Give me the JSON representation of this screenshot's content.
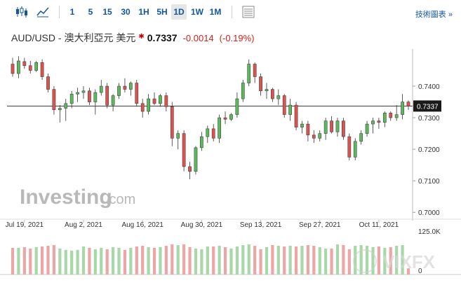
{
  "toolbar": {
    "intervals": [
      "1",
      "5",
      "15",
      "30",
      "1H",
      "5H",
      "1D",
      "1W",
      "1M"
    ],
    "active_interval": "1D",
    "tech_chart_label": "技術圖表 »"
  },
  "header": {
    "symbol": "AUD/USD - 澳大利亞元 美元",
    "price": "0.7337",
    "change": "-0.0014",
    "change_pct": "(-0.19%)"
  },
  "branding": {
    "logo_main": "Investing",
    "logo_suffix": ".com",
    "watermark": "VIXFX"
  },
  "colors": {
    "up": "#5cb85c",
    "down": "#d9534f",
    "vol_up": "#a8d8a8",
    "vol_down": "#eda6a6",
    "accent": "#1256a0"
  },
  "chart_data": {
    "type": "candlestick",
    "y_ticks": [
      "0.7400",
      "0.7300",
      "0.7200",
      "0.7100",
      "0.7000"
    ],
    "ylim": [
      0.6985,
      0.75
    ],
    "x_labels": [
      "Jul 19, 2021",
      "Aug 2, 2021",
      "Aug 16, 2021",
      "Aug 30, 2021",
      "Sep 13, 2021",
      "Sep 27, 2021",
      "Oct 11, 2021"
    ],
    "current_price_label": "0.7337",
    "current_price": 0.7337,
    "volume_label": "125.0K",
    "volume_zero_label": "0",
    "ohlc": [
      [
        0.747,
        0.749,
        0.743,
        0.744
      ],
      [
        0.744,
        0.7495,
        0.7425,
        0.748
      ],
      [
        0.7478,
        0.749,
        0.7455,
        0.7465
      ],
      [
        0.7465,
        0.748,
        0.744,
        0.745
      ],
      [
        0.745,
        0.748,
        0.7445,
        0.7475
      ],
      [
        0.7475,
        0.7485,
        0.742,
        0.743
      ],
      [
        0.743,
        0.744,
        0.738,
        0.739
      ],
      [
        0.739,
        0.74,
        0.731,
        0.7325
      ],
      [
        0.7325,
        0.734,
        0.7285,
        0.733
      ],
      [
        0.733,
        0.736,
        0.729,
        0.7345
      ],
      [
        0.7345,
        0.7385,
        0.733,
        0.7375
      ],
      [
        0.7375,
        0.7395,
        0.735,
        0.738
      ],
      [
        0.738,
        0.74,
        0.736,
        0.7385
      ],
      [
        0.7385,
        0.7395,
        0.734,
        0.735
      ],
      [
        0.735,
        0.739,
        0.731,
        0.738
      ],
      [
        0.738,
        0.742,
        0.737,
        0.74
      ],
      [
        0.74,
        0.741,
        0.733,
        0.734
      ],
      [
        0.734,
        0.7375,
        0.732,
        0.737
      ],
      [
        0.737,
        0.741,
        0.736,
        0.74
      ],
      [
        0.74,
        0.7425,
        0.738,
        0.739
      ],
      [
        0.739,
        0.7415,
        0.737,
        0.741
      ],
      [
        0.741,
        0.742,
        0.7335,
        0.7345
      ],
      [
        0.7345,
        0.736,
        0.73,
        0.732
      ],
      [
        0.732,
        0.7375,
        0.731,
        0.736
      ],
      [
        0.736,
        0.738,
        0.734,
        0.7345
      ],
      [
        0.7345,
        0.7375,
        0.7335,
        0.737
      ],
      [
        0.737,
        0.738,
        0.732,
        0.7335
      ],
      [
        0.7335,
        0.735,
        0.721,
        0.7235
      ],
      [
        0.7235,
        0.726,
        0.72,
        0.725
      ],
      [
        0.725,
        0.726,
        0.713,
        0.7145
      ],
      [
        0.7145,
        0.716,
        0.7105,
        0.713
      ],
      [
        0.713,
        0.721,
        0.712,
        0.7205
      ],
      [
        0.7205,
        0.7255,
        0.7195,
        0.724
      ],
      [
        0.724,
        0.7275,
        0.722,
        0.7265
      ],
      [
        0.7265,
        0.728,
        0.7225,
        0.7235
      ],
      [
        0.7235,
        0.731,
        0.722,
        0.73
      ],
      [
        0.73,
        0.732,
        0.728,
        0.7295
      ],
      [
        0.7295,
        0.7315,
        0.729,
        0.731
      ],
      [
        0.731,
        0.738,
        0.73,
        0.736
      ],
      [
        0.736,
        0.742,
        0.735,
        0.741
      ],
      [
        0.741,
        0.7485,
        0.74,
        0.747
      ],
      [
        0.747,
        0.7475,
        0.741,
        0.743
      ],
      [
        0.743,
        0.744,
        0.737,
        0.7385
      ],
      [
        0.7385,
        0.741,
        0.736,
        0.739
      ],
      [
        0.739,
        0.7395,
        0.735,
        0.736
      ],
      [
        0.736,
        0.739,
        0.734,
        0.737
      ],
      [
        0.737,
        0.7375,
        0.73,
        0.731
      ],
      [
        0.731,
        0.736,
        0.729,
        0.734
      ],
      [
        0.734,
        0.735,
        0.726,
        0.727
      ],
      [
        0.727,
        0.729,
        0.725,
        0.728
      ],
      [
        0.728,
        0.729,
        0.7225,
        0.7245
      ],
      [
        0.7245,
        0.726,
        0.722,
        0.7235
      ],
      [
        0.7235,
        0.726,
        0.7225,
        0.725
      ],
      [
        0.725,
        0.73,
        0.723,
        0.729
      ],
      [
        0.729,
        0.7305,
        0.725,
        0.7255
      ],
      [
        0.7255,
        0.73,
        0.724,
        0.729
      ],
      [
        0.729,
        0.73,
        0.723,
        0.724
      ],
      [
        0.724,
        0.725,
        0.7165,
        0.7175
      ],
      [
        0.7175,
        0.7235,
        0.7165,
        0.7225
      ],
      [
        0.7225,
        0.726,
        0.7215,
        0.725
      ],
      [
        0.725,
        0.729,
        0.724,
        0.728
      ],
      [
        0.728,
        0.73,
        0.725,
        0.729
      ],
      [
        0.729,
        0.73,
        0.7265,
        0.7285
      ],
      [
        0.7285,
        0.732,
        0.727,
        0.7315
      ],
      [
        0.7315,
        0.732,
        0.729,
        0.73
      ],
      [
        0.73,
        0.734,
        0.729,
        0.731
      ],
      [
        0.731,
        0.7375,
        0.7295,
        0.735
      ],
      [
        0.735,
        0.7355,
        0.7325,
        0.7337
      ]
    ],
    "volume": [
      78,
      78,
      80,
      76,
      80,
      82,
      84,
      86,
      76,
      72,
      70,
      72,
      82,
      78,
      74,
      78,
      74,
      80,
      78,
      72,
      78,
      82,
      84,
      80,
      78,
      80,
      84,
      88,
      86,
      88,
      80,
      76,
      74,
      82,
      82,
      84,
      80,
      76,
      82,
      86,
      88,
      84,
      74,
      80,
      86,
      84,
      82,
      84,
      82,
      84,
      86,
      84,
      80,
      76,
      76,
      88,
      86,
      74,
      84,
      86,
      84,
      80,
      82,
      78,
      80,
      84,
      86,
      18
    ]
  }
}
